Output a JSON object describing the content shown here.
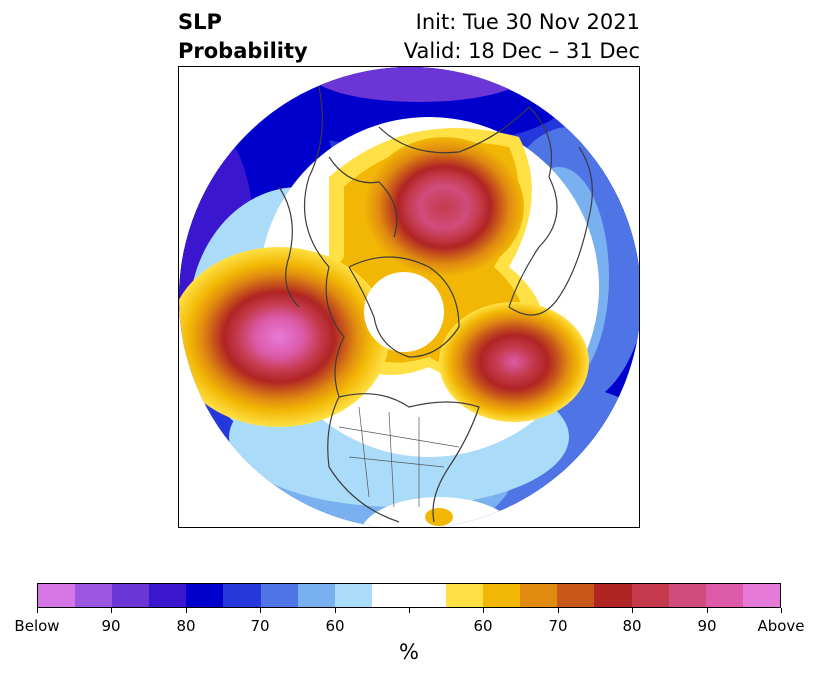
{
  "title": {
    "left_line1": "SLP",
    "left_line2": "Probability",
    "right_line1": "Init: Tue 30 Nov 2021",
    "right_line2": "Valid: 18 Dec – 31 Dec"
  },
  "colorbar": {
    "colors": [
      "#d675e6",
      "#9c55e0",
      "#6c35d6",
      "#3a17cf",
      "#0000cc",
      "#2538dc",
      "#4e74e6",
      "#79b0f0",
      "#aadcfa",
      "#ffffff",
      "#ffffff",
      "#ffe145",
      "#f2b705",
      "#e08b10",
      "#c8581a",
      "#b02424",
      "#c43a4c",
      "#d04c7c",
      "#dc5aa8",
      "#e67ad8"
    ],
    "tick_labels": [
      "Below",
      "90",
      "80",
      "70",
      "60",
      "60",
      "70",
      "80",
      "90",
      "Above"
    ],
    "unit": "%"
  }
}
